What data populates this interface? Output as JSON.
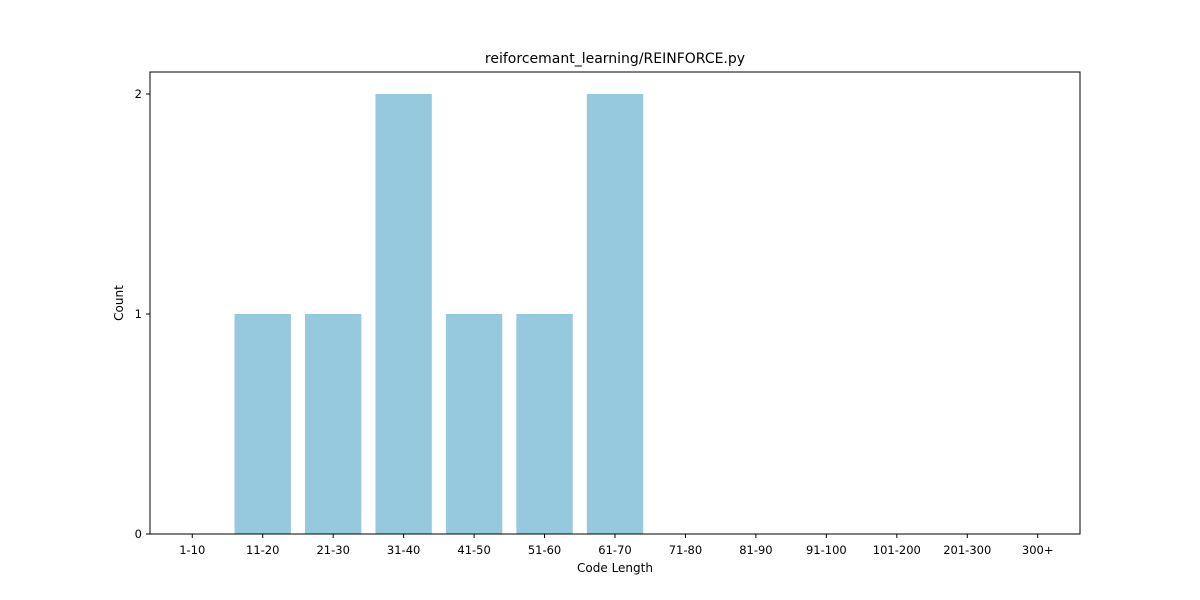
{
  "chart_data": {
    "type": "bar",
    "title": "reiforcemant_learning/REINFORCE.py",
    "xlabel": "Code Length",
    "ylabel": "Count",
    "categories": [
      "1-10",
      "11-20",
      "21-30",
      "31-40",
      "41-50",
      "51-60",
      "61-70",
      "71-80",
      "81-90",
      "91-100",
      "101-200",
      "201-300",
      "300+"
    ],
    "values": [
      0,
      1,
      1,
      2,
      1,
      1,
      2,
      0,
      0,
      0,
      0,
      0,
      0
    ],
    "ylim": [
      0,
      2.1
    ],
    "yticks": [
      "0",
      "1",
      "2"
    ],
    "bar_color": "#96c9dd",
    "grid": false,
    "legend": "none"
  }
}
